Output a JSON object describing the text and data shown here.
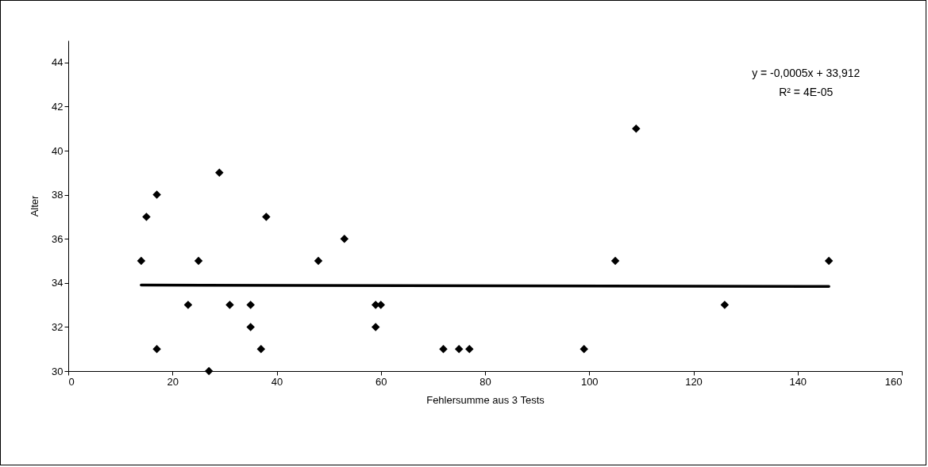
{
  "chart_data": {
    "type": "scatter",
    "xlabel": "Fehlersumme aus 3 Tests",
    "ylabel": "Alter",
    "xlim": [
      0,
      160
    ],
    "xticks": [
      0,
      20,
      40,
      60,
      80,
      100,
      120,
      140,
      160
    ],
    "ylim": [
      30,
      45
    ],
    "yticks": [
      30,
      32,
      34,
      36,
      38,
      40,
      42,
      44
    ],
    "grid": false,
    "annotations": [
      "y = -0,0005x + 33,912",
      "R² = 4E-05"
    ],
    "series": [
      {
        "marker": "diamond",
        "color": "#000000",
        "x": [
          14,
          15,
          17,
          17,
          23,
          25,
          27,
          29,
          31,
          35,
          35,
          37,
          38,
          48,
          53,
          59,
          59,
          60,
          72,
          75,
          77,
          99,
          105,
          109,
          126,
          146
        ],
        "values": [
          35,
          37,
          38,
          31,
          33,
          35,
          30,
          39,
          33,
          33,
          32,
          31,
          37,
          35,
          36,
          33,
          32,
          33,
          31,
          31,
          31,
          31,
          35,
          41,
          33,
          35
        ]
      },
      {
        "type": "line",
        "color": "#000000",
        "x": [
          14,
          146
        ],
        "values": [
          33.9,
          33.84
        ]
      }
    ]
  }
}
